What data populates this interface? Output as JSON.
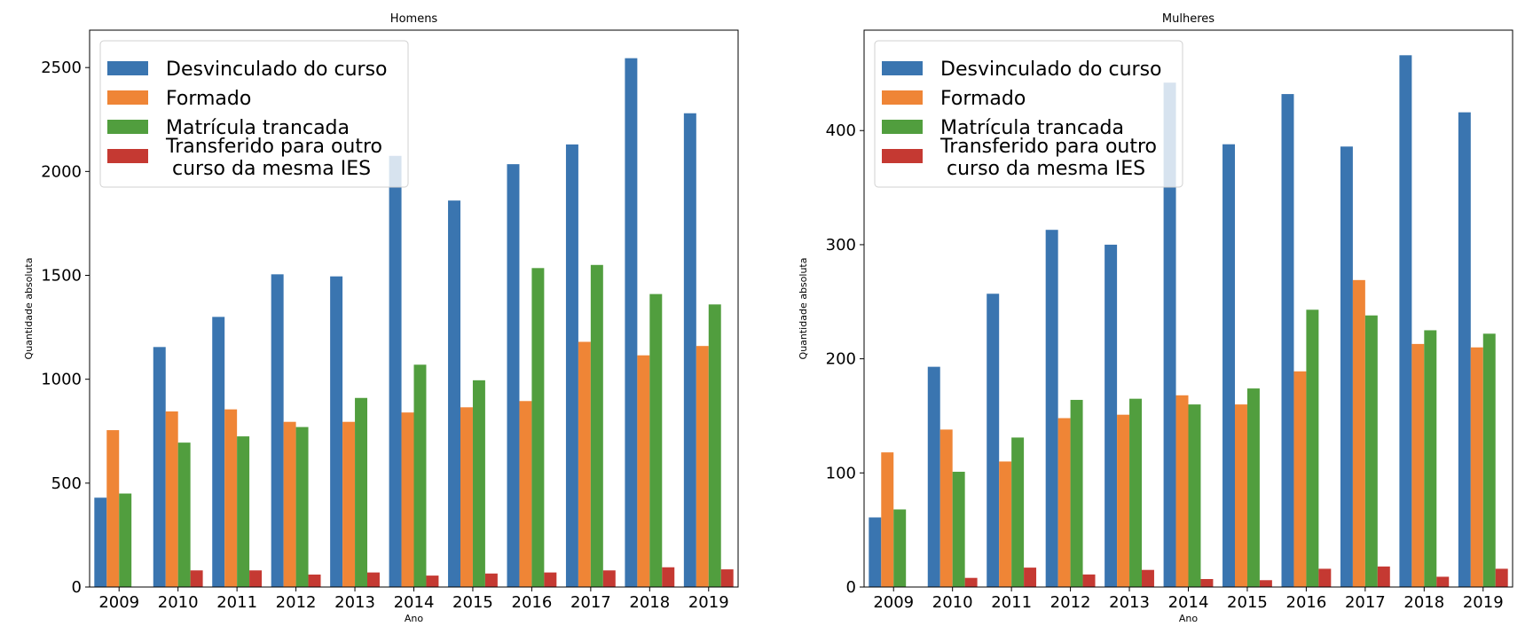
{
  "chart_data": [
    {
      "type": "bar",
      "title": "Homens",
      "xlabel": "Ano",
      "ylabel": "Quantidade absoluta",
      "categories": [
        "2009",
        "2010",
        "2011",
        "2012",
        "2013",
        "2014",
        "2015",
        "2016",
        "2017",
        "2018",
        "2019"
      ],
      "ylim": [
        0,
        2680
      ],
      "yticks": [
        0,
        500,
        1000,
        1500,
        2000,
        2500
      ],
      "legend_position": "top-left",
      "series": [
        {
          "name": "Desvinculado do curso",
          "color": "#3a75b0",
          "values": [
            430,
            1155,
            1300,
            1505,
            1495,
            2075,
            1860,
            2035,
            2130,
            2545,
            2280
          ]
        },
        {
          "name": "Formado",
          "color": "#ef8536",
          "values": [
            755,
            845,
            855,
            795,
            795,
            840,
            865,
            895,
            1180,
            1115,
            1160
          ]
        },
        {
          "name": "Matrícula trancada",
          "color": "#519e3e",
          "values": [
            450,
            695,
            725,
            770,
            910,
            1070,
            995,
            1535,
            1550,
            1410,
            1360
          ]
        },
        {
          "name": "Transferido para outro\n curso da mesma IES",
          "color": "#c53932",
          "values": [
            0,
            80,
            80,
            60,
            70,
            55,
            65,
            70,
            80,
            95,
            85
          ]
        }
      ]
    },
    {
      "type": "bar",
      "title": "Mulheres",
      "xlabel": "Ano",
      "ylabel": "Quantidade absoluta",
      "categories": [
        "2009",
        "2010",
        "2011",
        "2012",
        "2013",
        "2014",
        "2015",
        "2016",
        "2017",
        "2018",
        "2019"
      ],
      "ylim": [
        0,
        488
      ],
      "yticks": [
        0,
        100,
        200,
        300,
        400
      ],
      "legend_position": "top-left",
      "series": [
        {
          "name": "Desvinculado do curso",
          "color": "#3a75b0",
          "values": [
            61,
            193,
            257,
            313,
            300,
            442,
            388,
            432,
            386,
            466,
            416
          ]
        },
        {
          "name": "Formado",
          "color": "#ef8536",
          "values": [
            118,
            138,
            110,
            148,
            151,
            168,
            160,
            189,
            269,
            213,
            210
          ]
        },
        {
          "name": "Matrícula trancada",
          "color": "#519e3e",
          "values": [
            68,
            101,
            131,
            164,
            165,
            160,
            174,
            243,
            238,
            225,
            222
          ]
        },
        {
          "name": "Transferido para outro\n curso da mesma IES",
          "color": "#c53932",
          "values": [
            0,
            8,
            17,
            11,
            15,
            7,
            6,
            16,
            18,
            9,
            16
          ]
        }
      ]
    }
  ]
}
